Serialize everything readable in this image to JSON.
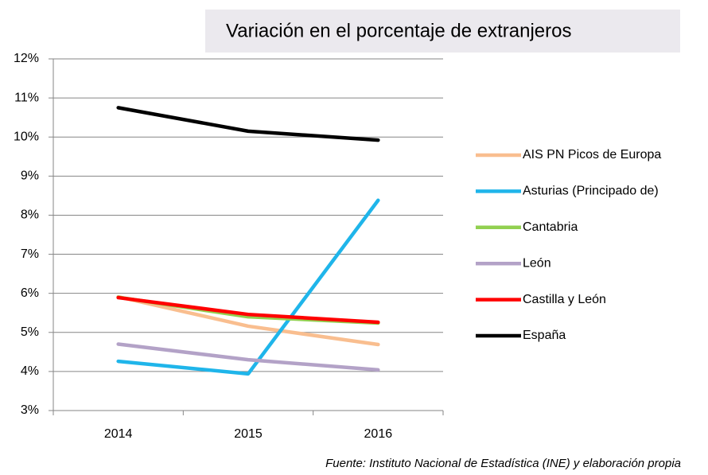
{
  "chart_data": {
    "type": "line",
    "title": "Variación en el porcentaje de extranjeros",
    "categories": [
      "2014",
      "2015",
      "2016"
    ],
    "series": [
      {
        "name": "AIS PN Picos de Europa",
        "color": "#f9be8f",
        "values": [
          5.91,
          5.16,
          4.69
        ]
      },
      {
        "name": "Asturias (Principado de)",
        "color": "#1fb5ea",
        "values": [
          4.26,
          3.94,
          8.38
        ]
      },
      {
        "name": "Cantabria",
        "color": "#92d050",
        "values": [
          5.9,
          5.4,
          5.24
        ]
      },
      {
        "name": "León",
        "color": "#b3a2c7",
        "values": [
          4.7,
          4.3,
          4.04
        ]
      },
      {
        "name": "Castilla y León",
        "color": "#ff0000",
        "values": [
          5.89,
          5.46,
          5.26
        ]
      },
      {
        "name": "España",
        "color": "#000000",
        "values": [
          10.75,
          10.15,
          9.92
        ]
      }
    ],
    "ylim": [
      3,
      12
    ],
    "yticks": [
      {
        "value": 3,
        "label": "3%"
      },
      {
        "value": 4,
        "label": "4%"
      },
      {
        "value": 5,
        "label": "5%"
      },
      {
        "value": 6,
        "label": "6%"
      },
      {
        "value": 7,
        "label": "7%"
      },
      {
        "value": 8,
        "label": "8%"
      },
      {
        "value": 9,
        "label": "9%"
      },
      {
        "value": 10,
        "label": "10%"
      },
      {
        "value": 11,
        "label": "11%"
      },
      {
        "value": 12,
        "label": "12%"
      }
    ],
    "grid": true,
    "legend": "right",
    "source": "Fuente: Instituto Nacional de Estadística (INE) y elaboración propia"
  }
}
